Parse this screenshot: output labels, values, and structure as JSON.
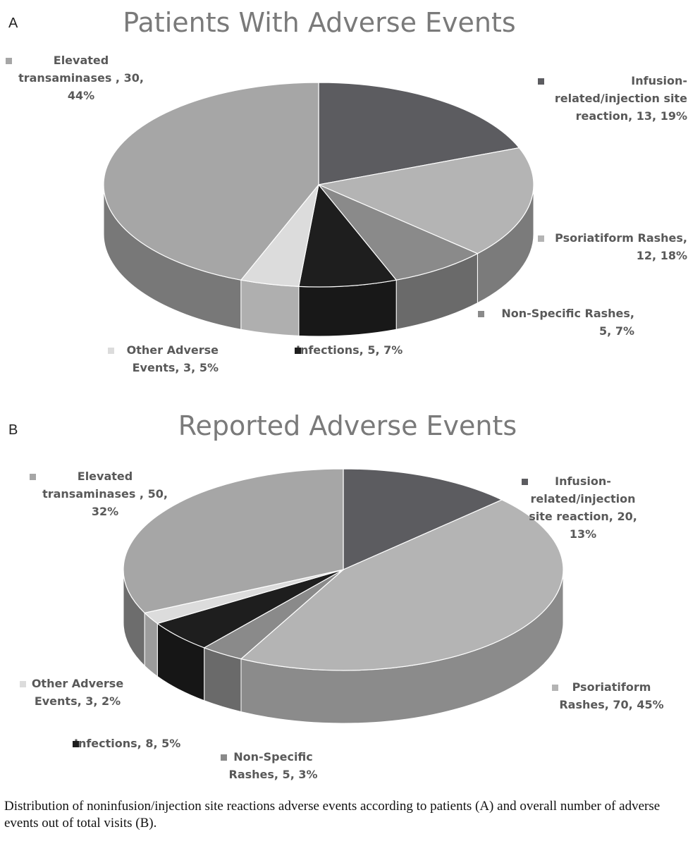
{
  "caption": "Distribution of noninfusion/injection site reactions adverse events according to patients (A) and overall number of adverse events out of total visits (B).",
  "chart_data": [
    {
      "type": "pie",
      "panel_letter": "A",
      "title": "Patients With Adverse Events",
      "start_angle_deg": -90,
      "slices": [
        {
          "category": "Infusion-related/injection site reaction",
          "value": 13,
          "percent": 19,
          "color": "#5c5c60"
        },
        {
          "category": "Psoriatiform Rashes",
          "value": 12,
          "percent": 18,
          "color": "#b4b4b4"
        },
        {
          "category": "Non-Specific  Rashes",
          "value": 5,
          "percent": 7,
          "color": "#8a8a8a"
        },
        {
          "category": "Infections",
          "value": 5,
          "percent": 7,
          "color": "#1e1e1e"
        },
        {
          "category": "Other Adverse Events",
          "value": 3,
          "percent": 5,
          "color": "#dcdcdc"
        },
        {
          "category": "Elevated transaminases ",
          "value": 30,
          "percent": 44,
          "color": "#a6a6a6"
        }
      ],
      "labels": [
        {
          "lines": [
            "Infusion-",
            "related/injection site",
            "reaction, 13, 19%"
          ],
          "align": "right"
        },
        {
          "lines": [
            "Psoriatiform Rashes,",
            "12, 18%"
          ],
          "align": "right"
        },
        {
          "lines": [
            "Non-Specific  Rashes,",
            "5, 7%"
          ],
          "align": "right"
        },
        {
          "lines": [
            "Infections, 5, 7%"
          ],
          "align": "left"
        },
        {
          "lines": [
            "Other Adverse",
            "Events, 3, 5%"
          ],
          "align": "right"
        },
        {
          "lines": [
            "Elevated",
            "transaminases , 30,",
            "44%"
          ],
          "align": "center"
        }
      ]
    },
    {
      "type": "pie",
      "panel_letter": "B",
      "title": "Reported Adverse Events",
      "start_angle_deg": -90,
      "slices": [
        {
          "category": "Infusion-related/injection site reaction",
          "value": 20,
          "percent": 13,
          "color": "#5c5c60"
        },
        {
          "category": "Psoriatiform Rashes",
          "value": 70,
          "percent": 45,
          "color": "#b4b4b4"
        },
        {
          "category": "Non-Specific Rashes",
          "value": 5,
          "percent": 3,
          "color": "#8a8a8a"
        },
        {
          "category": "Infections",
          "value": 8,
          "percent": 5,
          "color": "#1e1e1e"
        },
        {
          "category": "Other Adverse Events",
          "value": 3,
          "percent": 2,
          "color": "#dcdcdc"
        },
        {
          "category": "Elevated transaminases ",
          "value": 50,
          "percent": 32,
          "color": "#a6a6a6"
        }
      ],
      "labels": [
        {
          "lines": [
            "Infusion-",
            "related/injection",
            "site reaction, 20,",
            "13%"
          ],
          "align": "center"
        },
        {
          "lines": [
            "Psoriatiform",
            "Rashes, 70, 45%"
          ],
          "align": "center"
        },
        {
          "lines": [
            "Non-Specific",
            "Rashes, 5, 3%"
          ],
          "align": "center"
        },
        {
          "lines": [
            "Infections, 8, 5%"
          ],
          "align": "left"
        },
        {
          "lines": [
            "Other Adverse",
            "Events, 3, 2%"
          ],
          "align": "center"
        },
        {
          "lines": [
            "Elevated",
            "transaminases , 50,",
            "32%"
          ],
          "align": "center"
        }
      ]
    }
  ]
}
